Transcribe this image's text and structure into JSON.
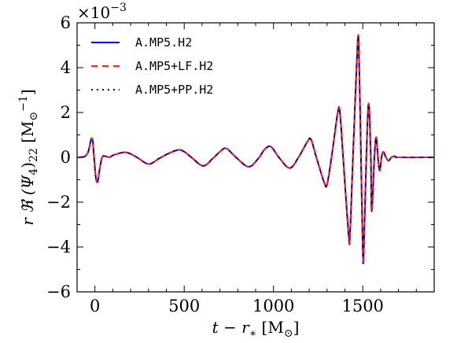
{
  "chart_data": {
    "type": "line",
    "title": "",
    "xlabel": "t − r∗ [M⊙]",
    "ylabel": "r ℜ (Ψ4)22 [M⊙−1]",
    "ylabel_parts": {
      "pre": "r ℜ (Ψ",
      "sub4": "4",
      "mid": ")",
      "sub22": "22",
      "bracket": " [M",
      "sym": "⊙",
      "sup": "−1",
      "close": "]"
    },
    "xlabel_parts": {
      "pre": "t − r",
      "star": "∗",
      "bracket": " [M",
      "sym": "⊙",
      "close": "]"
    },
    "y_scale_label": {
      "base": "×10",
      "exp": "−3"
    },
    "xlim": [
      -100,
      1900
    ],
    "ylim": [
      -6,
      6
    ],
    "x_ticks": [
      0,
      500,
      1000,
      1500
    ],
    "x_tick_labels": [
      "0",
      "500",
      "1000",
      "1500"
    ],
    "y_ticks": [
      -6,
      -4,
      -2,
      0,
      2,
      4,
      6
    ],
    "y_tick_labels": [
      "−6",
      "−4",
      "−2",
      "0",
      "2",
      "4",
      "6"
    ],
    "grid": false,
    "legend_position": "upper-left",
    "colors": {
      "series1": "#0000cc",
      "series2": "#ff1a1a",
      "series3": "#000000"
    },
    "series": [
      {
        "name": "A.MP5.H2",
        "style": "solid"
      },
      {
        "name": "A.MP5+LF.H2",
        "style": "dashed"
      },
      {
        "name": "A.MP5+PP.H2",
        "style": "dotted"
      }
    ],
    "points": [
      [
        -100,
        0.0
      ],
      [
        -60,
        0.03
      ],
      [
        -40,
        0.2
      ],
      [
        -30,
        0.5
      ],
      [
        -20,
        0.85
      ],
      [
        -12,
        0.7
      ],
      [
        -5,
        0.0
      ],
      [
        5,
        -0.9
      ],
      [
        15,
        -1.1
      ],
      [
        25,
        -0.6
      ],
      [
        40,
        0.0
      ],
      [
        60,
        0.05
      ],
      [
        80,
        0.0
      ],
      [
        110,
        0.12
      ],
      [
        175,
        0.22
      ],
      [
        235,
        0.0
      ],
      [
        300,
        -0.3
      ],
      [
        360,
        -0.05
      ],
      [
        420,
        0.2
      ],
      [
        480,
        0.33
      ],
      [
        540,
        0.0
      ],
      [
        605,
        -0.38
      ],
      [
        660,
        -0.05
      ],
      [
        700,
        0.25
      ],
      [
        735,
        0.4
      ],
      [
        790,
        0.0
      ],
      [
        860,
        -0.42
      ],
      [
        915,
        -0.05
      ],
      [
        950,
        0.35
      ],
      [
        985,
        0.48
      ],
      [
        1030,
        0.0
      ],
      [
        1090,
        -0.48
      ],
      [
        1140,
        0.0
      ],
      [
        1190,
        0.7
      ],
      [
        1210,
        0.8
      ],
      [
        1240,
        0.0
      ],
      [
        1285,
        -1.15
      ],
      [
        1300,
        -1.2
      ],
      [
        1325,
        0.0
      ],
      [
        1360,
        2.0
      ],
      [
        1372,
        2.0
      ],
      [
        1390,
        0.0
      ],
      [
        1420,
        -3.4
      ],
      [
        1428,
        -3.5
      ],
      [
        1445,
        0.0
      ],
      [
        1470,
        4.9
      ],
      [
        1478,
        4.8
      ],
      [
        1490,
        0.0
      ],
      [
        1500,
        -4.1
      ],
      [
        1505,
        -4.3
      ],
      [
        1520,
        0.0
      ],
      [
        1533,
        2.4
      ],
      [
        1545,
        0.0
      ],
      [
        1550,
        -2.4
      ],
      [
        1565,
        0.0
      ],
      [
        1575,
        0.9
      ],
      [
        1585,
        0.0
      ],
      [
        1595,
        -0.6
      ],
      [
        1605,
        0.0
      ],
      [
        1615,
        0.25
      ],
      [
        1630,
        0.0
      ],
      [
        1645,
        -0.15
      ],
      [
        1660,
        0.0
      ],
      [
        1680,
        0.05
      ],
      [
        1700,
        0.0
      ],
      [
        1900,
        0.0
      ]
    ]
  }
}
